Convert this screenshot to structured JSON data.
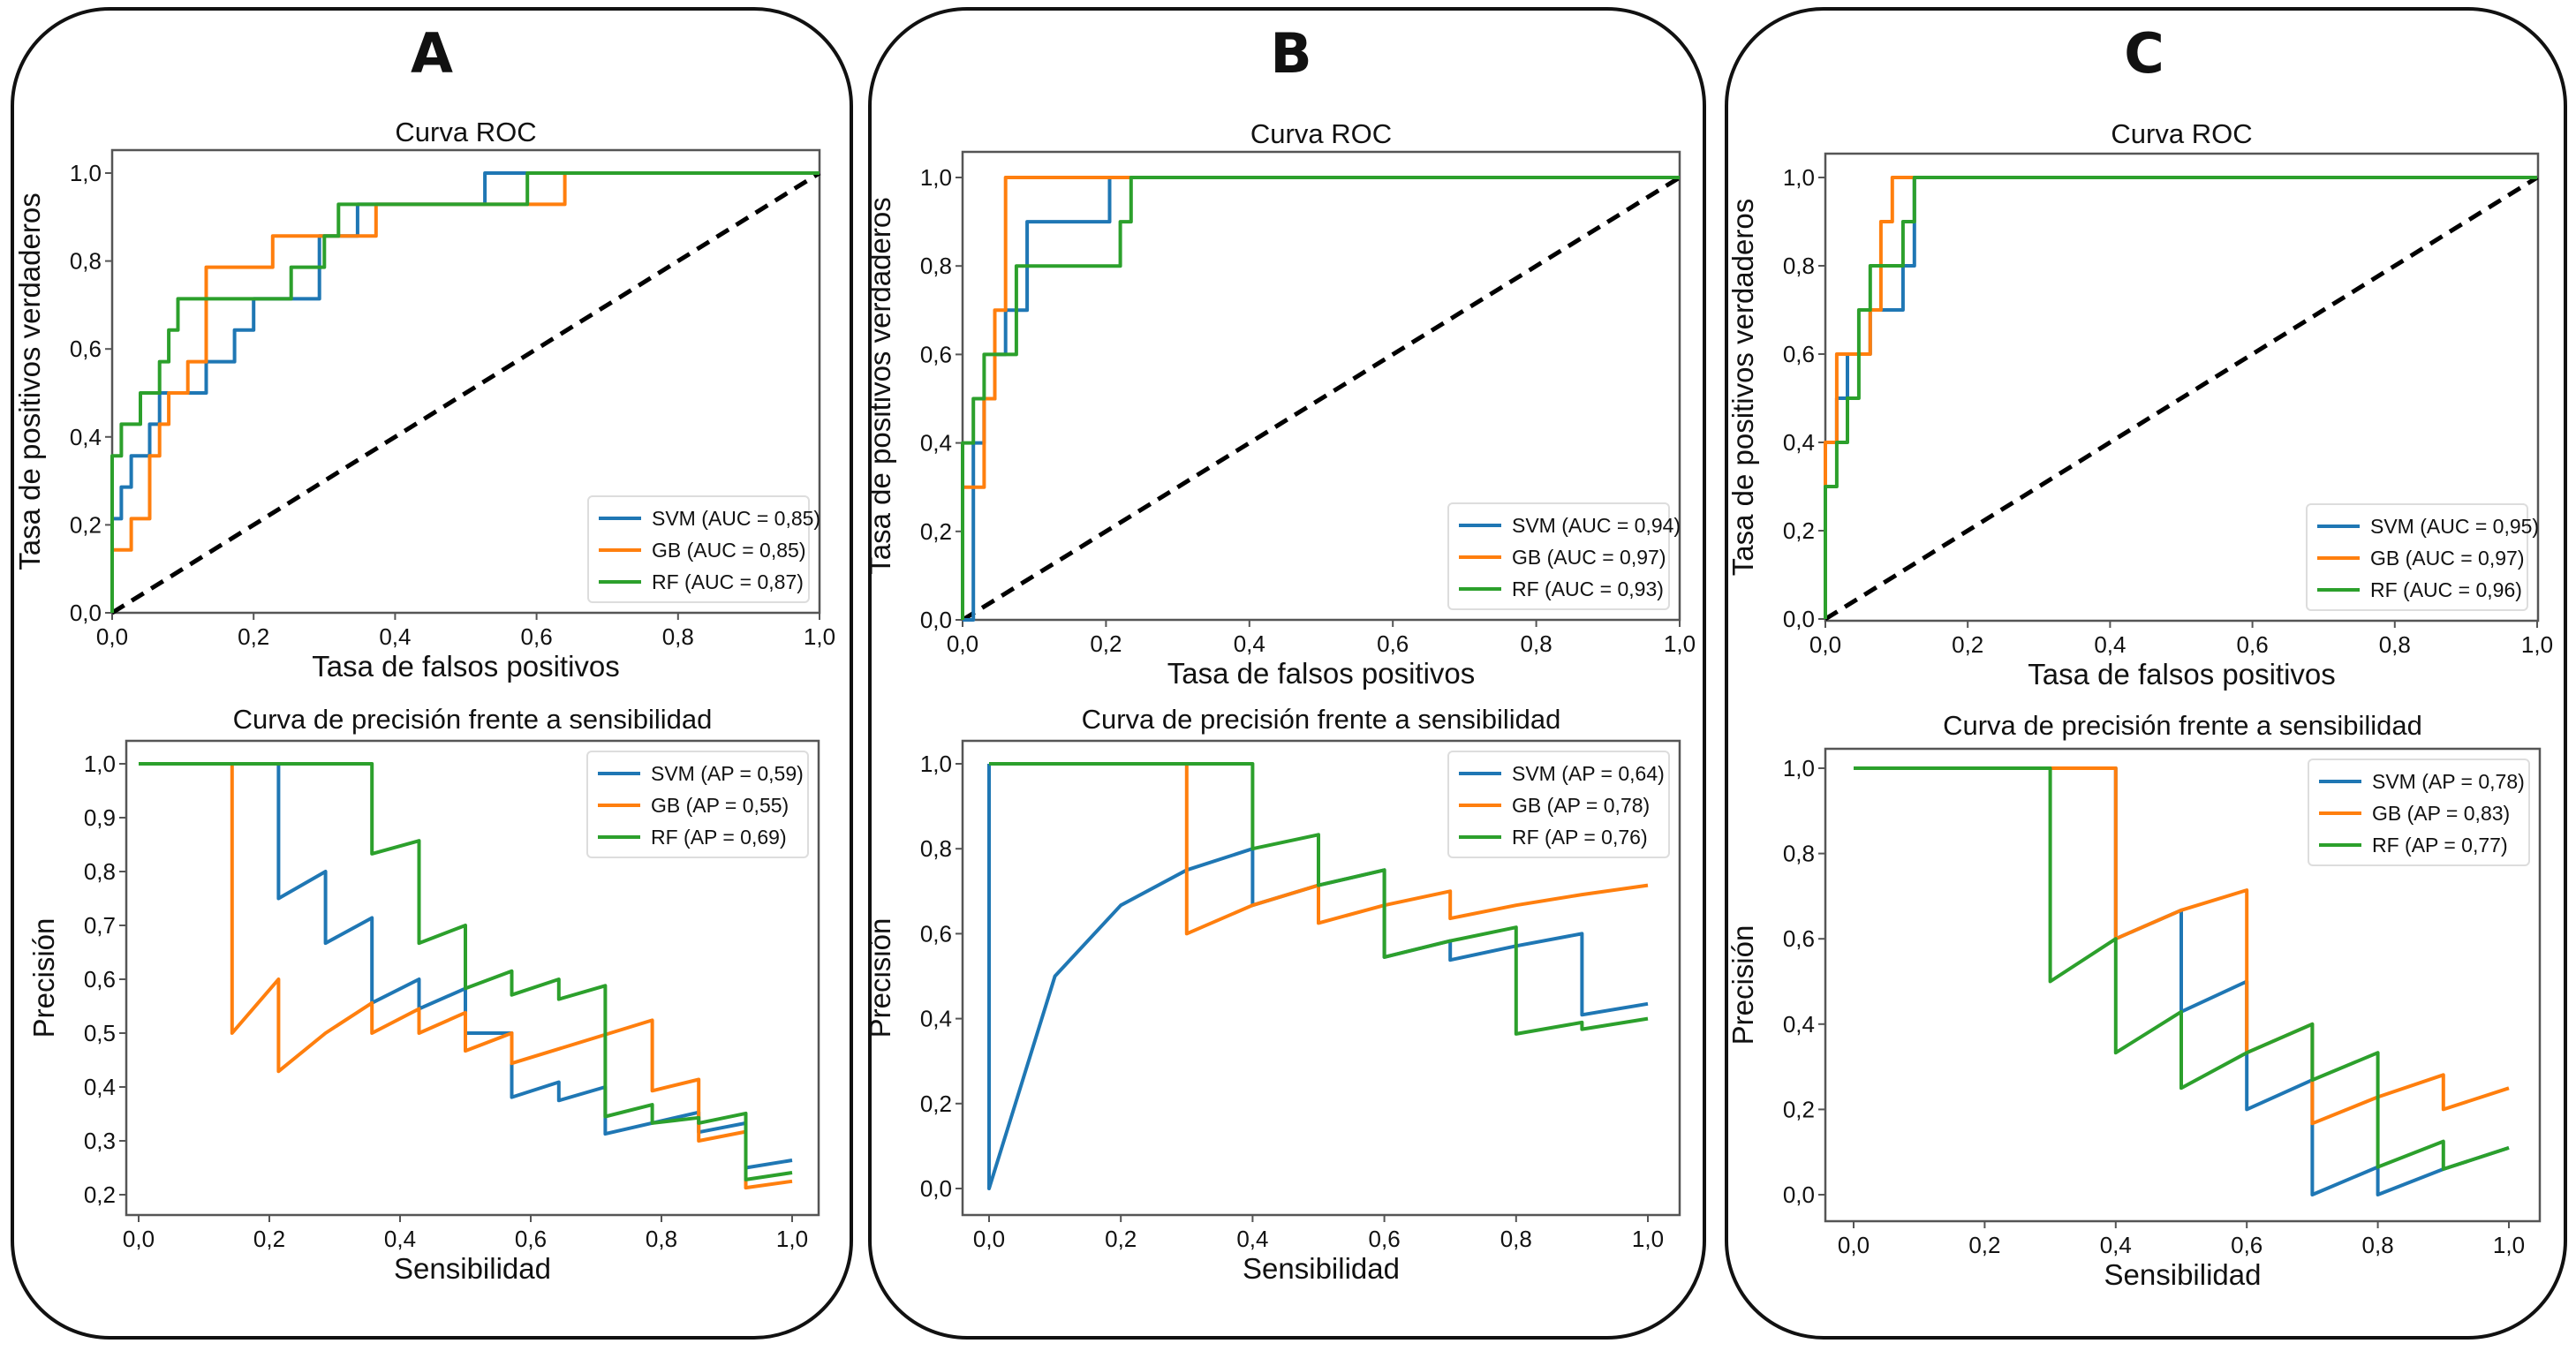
{
  "colors": {
    "SVM": "#1f77b4",
    "GB": "#ff7f0e",
    "RF": "#2ca02c",
    "chance": "#000000"
  },
  "chart_data": [
    {
      "panel": "A",
      "type": "line",
      "title": "Curva ROC",
      "xlabel": "Tasa de falsos positivos",
      "ylabel": "Tasa de positivos verdaderos",
      "xlim": [
        0,
        1
      ],
      "ylim": [
        0,
        1
      ],
      "xticks": [
        "0,0",
        "0,2",
        "0,4",
        "0,6",
        "0,8",
        "1,0"
      ],
      "yticks": [
        "0,0",
        "0,2",
        "0,4",
        "0,6",
        "0,8",
        "1,0"
      ],
      "legend_position": "lower-right",
      "chance_line": true,
      "series": [
        {
          "name": "SVM",
          "label": "SVM (AUC = 0,85)",
          "x": [
            0,
            0,
            0.013,
            0.013,
            0.027,
            0.027,
            0.053,
            0.053,
            0.067,
            0.067,
            0.133,
            0.133,
            0.173,
            0.173,
            0.2,
            0.2,
            0.293,
            0.293,
            0.347,
            0.347,
            0.527,
            0.527,
            1
          ],
          "y": [
            0,
            0.214,
            0.214,
            0.286,
            0.286,
            0.357,
            0.357,
            0.429,
            0.429,
            0.5,
            0.5,
            0.571,
            0.571,
            0.643,
            0.643,
            0.714,
            0.714,
            0.857,
            0.857,
            0.929,
            0.929,
            1,
            1
          ]
        },
        {
          "name": "GB",
          "label": "GB (AUC = 0,85)",
          "x": [
            0,
            0,
            0.027,
            0.027,
            0.053,
            0.053,
            0.067,
            0.067,
            0.08,
            0.08,
            0.107,
            0.107,
            0.133,
            0.133,
            0.227,
            0.227,
            0.293,
            0.293,
            0.373,
            0.373,
            0.64,
            0.64,
            1
          ],
          "y": [
            0,
            0.143,
            0.143,
            0.214,
            0.214,
            0.357,
            0.357,
            0.429,
            0.429,
            0.5,
            0.5,
            0.571,
            0.571,
            0.786,
            0.786,
            0.857,
            0.857,
            0.857,
            0.857,
            0.929,
            0.929,
            1,
            1
          ]
        },
        {
          "name": "RF",
          "label": "RF (AUC = 0,87)",
          "x": [
            0,
            0,
            0.013,
            0.013,
            0.04,
            0.04,
            0.067,
            0.067,
            0.08,
            0.08,
            0.093,
            0.093,
            0.253,
            0.253,
            0.3,
            0.3,
            0.32,
            0.32,
            0.587,
            0.587,
            1
          ],
          "y": [
            0,
            0.357,
            0.357,
            0.429,
            0.429,
            0.5,
            0.5,
            0.571,
            0.571,
            0.643,
            0.643,
            0.714,
            0.714,
            0.786,
            0.786,
            0.857,
            0.857,
            0.929,
            0.929,
            1,
            1
          ]
        }
      ]
    },
    {
      "panel": "A",
      "type": "line",
      "title": "Curva de precisión frente a sensibilidad",
      "xlabel": "Sensibilidad",
      "ylabel": "Precisión",
      "xlim": [
        -0.05,
        1.05
      ],
      "ylim": [
        0.2,
        1.0
      ],
      "xticks": [
        "0,0",
        "0,2",
        "0,4",
        "0,6",
        "0,8",
        "1,0"
      ],
      "yticks": [
        "0,2",
        "0,3",
        "0,4",
        "0,5",
        "0,6",
        "0,7",
        "0,8",
        "0,9",
        "1,0"
      ],
      "legend_position": "upper-right",
      "series": [
        {
          "name": "SVM",
          "label": "SVM (AP = 0,59)",
          "x": [
            0,
            0.214,
            0.214,
            0.286,
            0.286,
            0.357,
            0.357,
            0.429,
            0.429,
            0.5,
            0.5,
            0.571,
            0.571,
            0.643,
            0.643,
            0.714,
            0.714,
            0.857,
            0.857,
            0.929,
            0.929,
            1
          ],
          "y": [
            1,
            1,
            0.75,
            0.8,
            0.667,
            0.714,
            0.556,
            0.6,
            0.545,
            0.583,
            0.5,
            0.5,
            0.381,
            0.409,
            0.375,
            0.4,
            0.313,
            0.353,
            0.316,
            0.333,
            0.25,
            0.264
          ]
        },
        {
          "name": "GB",
          "label": "GB (AP = 0,55)",
          "x": [
            0,
            0.143,
            0.143,
            0.214,
            0.214,
            0.286,
            0.357,
            0.357,
            0.429,
            0.429,
            0.5,
            0.5,
            0.571,
            0.571,
            0.786,
            0.786,
            0.857,
            0.857,
            0.929,
            0.929,
            1
          ],
          "y": [
            1,
            1,
            0.5,
            0.6,
            0.429,
            0.5,
            0.556,
            0.5,
            0.545,
            0.5,
            0.538,
            0.467,
            0.5,
            0.444,
            0.524,
            0.393,
            0.414,
            0.3,
            0.317,
            0.213,
            0.225
          ]
        },
        {
          "name": "RF",
          "label": "RF (AP = 0,69)",
          "x": [
            0,
            0.357,
            0.357,
            0.429,
            0.429,
            0.5,
            0.5,
            0.571,
            0.571,
            0.643,
            0.643,
            0.714,
            0.714,
            0.786,
            0.786,
            0.857,
            0.857,
            0.929,
            0.929,
            1
          ],
          "y": [
            1,
            1,
            0.833,
            0.857,
            0.667,
            0.7,
            0.583,
            0.615,
            0.571,
            0.6,
            0.563,
            0.588,
            0.345,
            0.367,
            0.333,
            0.343,
            0.333,
            0.351,
            0.228,
            0.241
          ]
        }
      ]
    },
    {
      "panel": "B",
      "type": "line",
      "title": "Curva ROC",
      "xlabel": "Tasa de falsos positivos",
      "ylabel": "Tasa de positivos verdaderos",
      "xlim": [
        0,
        1
      ],
      "ylim": [
        0,
        1
      ],
      "xticks": [
        "0,0",
        "0,2",
        "0,4",
        "0,6",
        "0,8",
        "1,0"
      ],
      "yticks": [
        "0,0",
        "0,2",
        "0,4",
        "0,6",
        "0,8",
        "1,0"
      ],
      "legend_position": "lower-right",
      "chance_line": true,
      "series": [
        {
          "name": "SVM",
          "label": "SVM (AUC = 0,94)",
          "x": [
            0,
            0.015,
            0.015,
            0.03,
            0.03,
            0.045,
            0.045,
            0.06,
            0.06,
            0.075,
            0.075,
            0.09,
            0.09,
            0.205,
            0.205,
            1
          ],
          "y": [
            0,
            0,
            0.4,
            0.4,
            0.5,
            0.5,
            0.6,
            0.6,
            0.7,
            0.7,
            0.7,
            0.7,
            0.9,
            0.9,
            1,
            1
          ]
        },
        {
          "name": "GB",
          "label": "GB (AUC = 0,97)",
          "x": [
            0,
            0,
            0.03,
            0.03,
            0.045,
            0.045,
            0.06,
            0.06,
            1
          ],
          "y": [
            0,
            0.3,
            0.3,
            0.5,
            0.5,
            0.7,
            0.7,
            1,
            1
          ]
        },
        {
          "name": "RF",
          "label": "RF (AUC = 0,93)",
          "x": [
            0,
            0,
            0.015,
            0.015,
            0.03,
            0.03,
            0.075,
            0.075,
            0.22,
            0.22,
            0.235,
            0.235,
            1
          ],
          "y": [
            0,
            0.4,
            0.4,
            0.5,
            0.5,
            0.6,
            0.6,
            0.8,
            0.8,
            0.9,
            0.9,
            1,
            1
          ]
        }
      ]
    },
    {
      "panel": "B",
      "type": "line",
      "title": "Curva de precisión frente a sensibilidad",
      "xlabel": "Sensibilidad",
      "ylabel": "Precisión",
      "xlim": [
        -0.05,
        1.05
      ],
      "ylim": [
        -0.05,
        1.05
      ],
      "xticks": [
        "0,0",
        "0,2",
        "0,4",
        "0,6",
        "0,8",
        "1,0"
      ],
      "yticks": [
        "0,0",
        "0,2",
        "0,4",
        "0,6",
        "0,8",
        "1,0"
      ],
      "legend_position": "upper-right",
      "series": [
        {
          "name": "SVM",
          "label": "SVM (AP = 0,64)",
          "x": [
            0,
            0,
            0.1,
            0.2,
            0.3,
            0.4,
            0.4,
            0.5,
            0.6,
            0.6,
            0.7,
            0.7,
            0.8,
            0.9,
            0.9,
            1
          ],
          "y": [
            1,
            0,
            0.5,
            0.667,
            0.75,
            0.8,
            0.667,
            0.714,
            0.75,
            0.545,
            0.583,
            0.538,
            0.571,
            0.6,
            0.409,
            0.435
          ]
        },
        {
          "name": "GB",
          "label": "GB (AP = 0,78)",
          "x": [
            0,
            0.3,
            0.3,
            0.4,
            0.5,
            0.5,
            0.6,
            0.7,
            0.7,
            0.8,
            0.9,
            1
          ],
          "y": [
            1,
            1,
            0.6,
            0.667,
            0.714,
            0.625,
            0.667,
            0.7,
            0.636,
            0.667,
            0.692,
            0.714
          ]
        },
        {
          "name": "RF",
          "label": "RF (AP = 0,76)",
          "x": [
            0,
            0.4,
            0.4,
            0.5,
            0.5,
            0.6,
            0.6,
            0.7,
            0.8,
            0.8,
            0.9,
            0.9,
            1
          ],
          "y": [
            1,
            1,
            0.8,
            0.833,
            0.714,
            0.75,
            0.545,
            0.583,
            0.615,
            0.364,
            0.391,
            0.375,
            0.4
          ]
        }
      ]
    },
    {
      "panel": "C",
      "type": "line",
      "title": "Curva ROC",
      "xlabel": "Tasa de falsos positivos",
      "ylabel": "Tasa de positivos verdaderos",
      "xlim": [
        0,
        1
      ],
      "ylim": [
        0,
        1
      ],
      "xticks": [
        "0,0",
        "0,2",
        "0,4",
        "0,6",
        "0,8",
        "1,0"
      ],
      "yticks": [
        "0,0",
        "0,2",
        "0,4",
        "0,6",
        "0,8",
        "1,0"
      ],
      "legend_position": "lower-right",
      "chance_line": true,
      "series": [
        {
          "name": "SVM",
          "label": "SVM (AUC = 0,95)",
          "x": [
            0,
            0,
            0.016,
            0.016,
            0.031,
            0.031,
            0.047,
            0.047,
            0.063,
            0.063,
            0.078,
            0.078,
            0.109,
            0.109,
            0.125,
            0.125,
            1
          ],
          "y": [
            0,
            0.4,
            0.4,
            0.5,
            0.5,
            0.6,
            0.6,
            0.6,
            0.6,
            0.7,
            0.7,
            0.7,
            0.7,
            0.8,
            0.8,
            1,
            1
          ]
        },
        {
          "name": "GB",
          "label": "GB (AUC = 0,97)",
          "x": [
            0,
            0,
            0.016,
            0.016,
            0.063,
            0.063,
            0.078,
            0.078,
            0.094,
            0.094,
            1
          ],
          "y": [
            0,
            0.4,
            0.4,
            0.6,
            0.6,
            0.7,
            0.7,
            0.9,
            0.9,
            1,
            1
          ]
        },
        {
          "name": "RF",
          "label": "RF (AUC = 0,96)",
          "x": [
            0,
            0,
            0.016,
            0.016,
            0.031,
            0.031,
            0.047,
            0.047,
            0.063,
            0.063,
            0.109,
            0.109,
            0.125,
            0.125,
            1
          ],
          "y": [
            0,
            0.3,
            0.3,
            0.4,
            0.4,
            0.5,
            0.5,
            0.7,
            0.7,
            0.8,
            0.8,
            0.9,
            0.9,
            1,
            1
          ]
        }
      ]
    },
    {
      "panel": "C",
      "type": "line",
      "title": "Curva de precisión frente a sensibilidad",
      "xlabel": "Sensibilidad",
      "ylabel": "Precisión",
      "xlim": [
        -0.05,
        1.05
      ],
      "ylim": [
        -0.05,
        1.05
      ],
      "xticks": [
        "0,0",
        "0,2",
        "0,4",
        "0,6",
        "0,8",
        "1,0"
      ],
      "yticks": [
        "0,0",
        "0,2",
        "0,4",
        "0,6",
        "0,8",
        "1,0"
      ],
      "legend_position": "upper-right",
      "series": [
        {
          "name": "SVM",
          "label": "SVM (AP = 0,78)",
          "x": [
            0,
            0.4,
            0.4,
            0.5,
            0.5,
            0.6,
            0.6,
            0.7,
            0.7,
            0.8,
            0.8,
            0.9,
            1
          ],
          "y": [
            1,
            1,
            0.6,
            0.667,
            0.429,
            0.5,
            0.2,
            0.269,
            0,
            0.065,
            0,
            0.06,
            0.11
          ]
        },
        {
          "name": "GB",
          "label": "GB (AP = 0,83)",
          "x": [
            0,
            0.4,
            0.4,
            0.5,
            0.6,
            0.6,
            0.7,
            0.7,
            0.8,
            0.9,
            0.9,
            1
          ],
          "y": [
            1,
            1,
            0.6,
            0.667,
            0.714,
            0.333,
            0.4,
            0.167,
            0.229,
            0.281,
            0.2,
            0.25
          ]
        },
        {
          "name": "RF",
          "label": "RF (AP = 0,77)",
          "x": [
            0,
            0.3,
            0.3,
            0.4,
            0.4,
            0.5,
            0.5,
            0.6,
            0.7,
            0.7,
            0.8,
            0.8,
            0.9,
            0.9,
            1
          ],
          "y": [
            1,
            1,
            0.5,
            0.6,
            0.333,
            0.429,
            0.25,
            0.333,
            0.4,
            0.269,
            0.333,
            0.065,
            0.125,
            0.06,
            0.11
          ]
        }
      ]
    }
  ],
  "panels": [
    {
      "letter": "A"
    },
    {
      "letter": "B"
    },
    {
      "letter": "C"
    }
  ]
}
